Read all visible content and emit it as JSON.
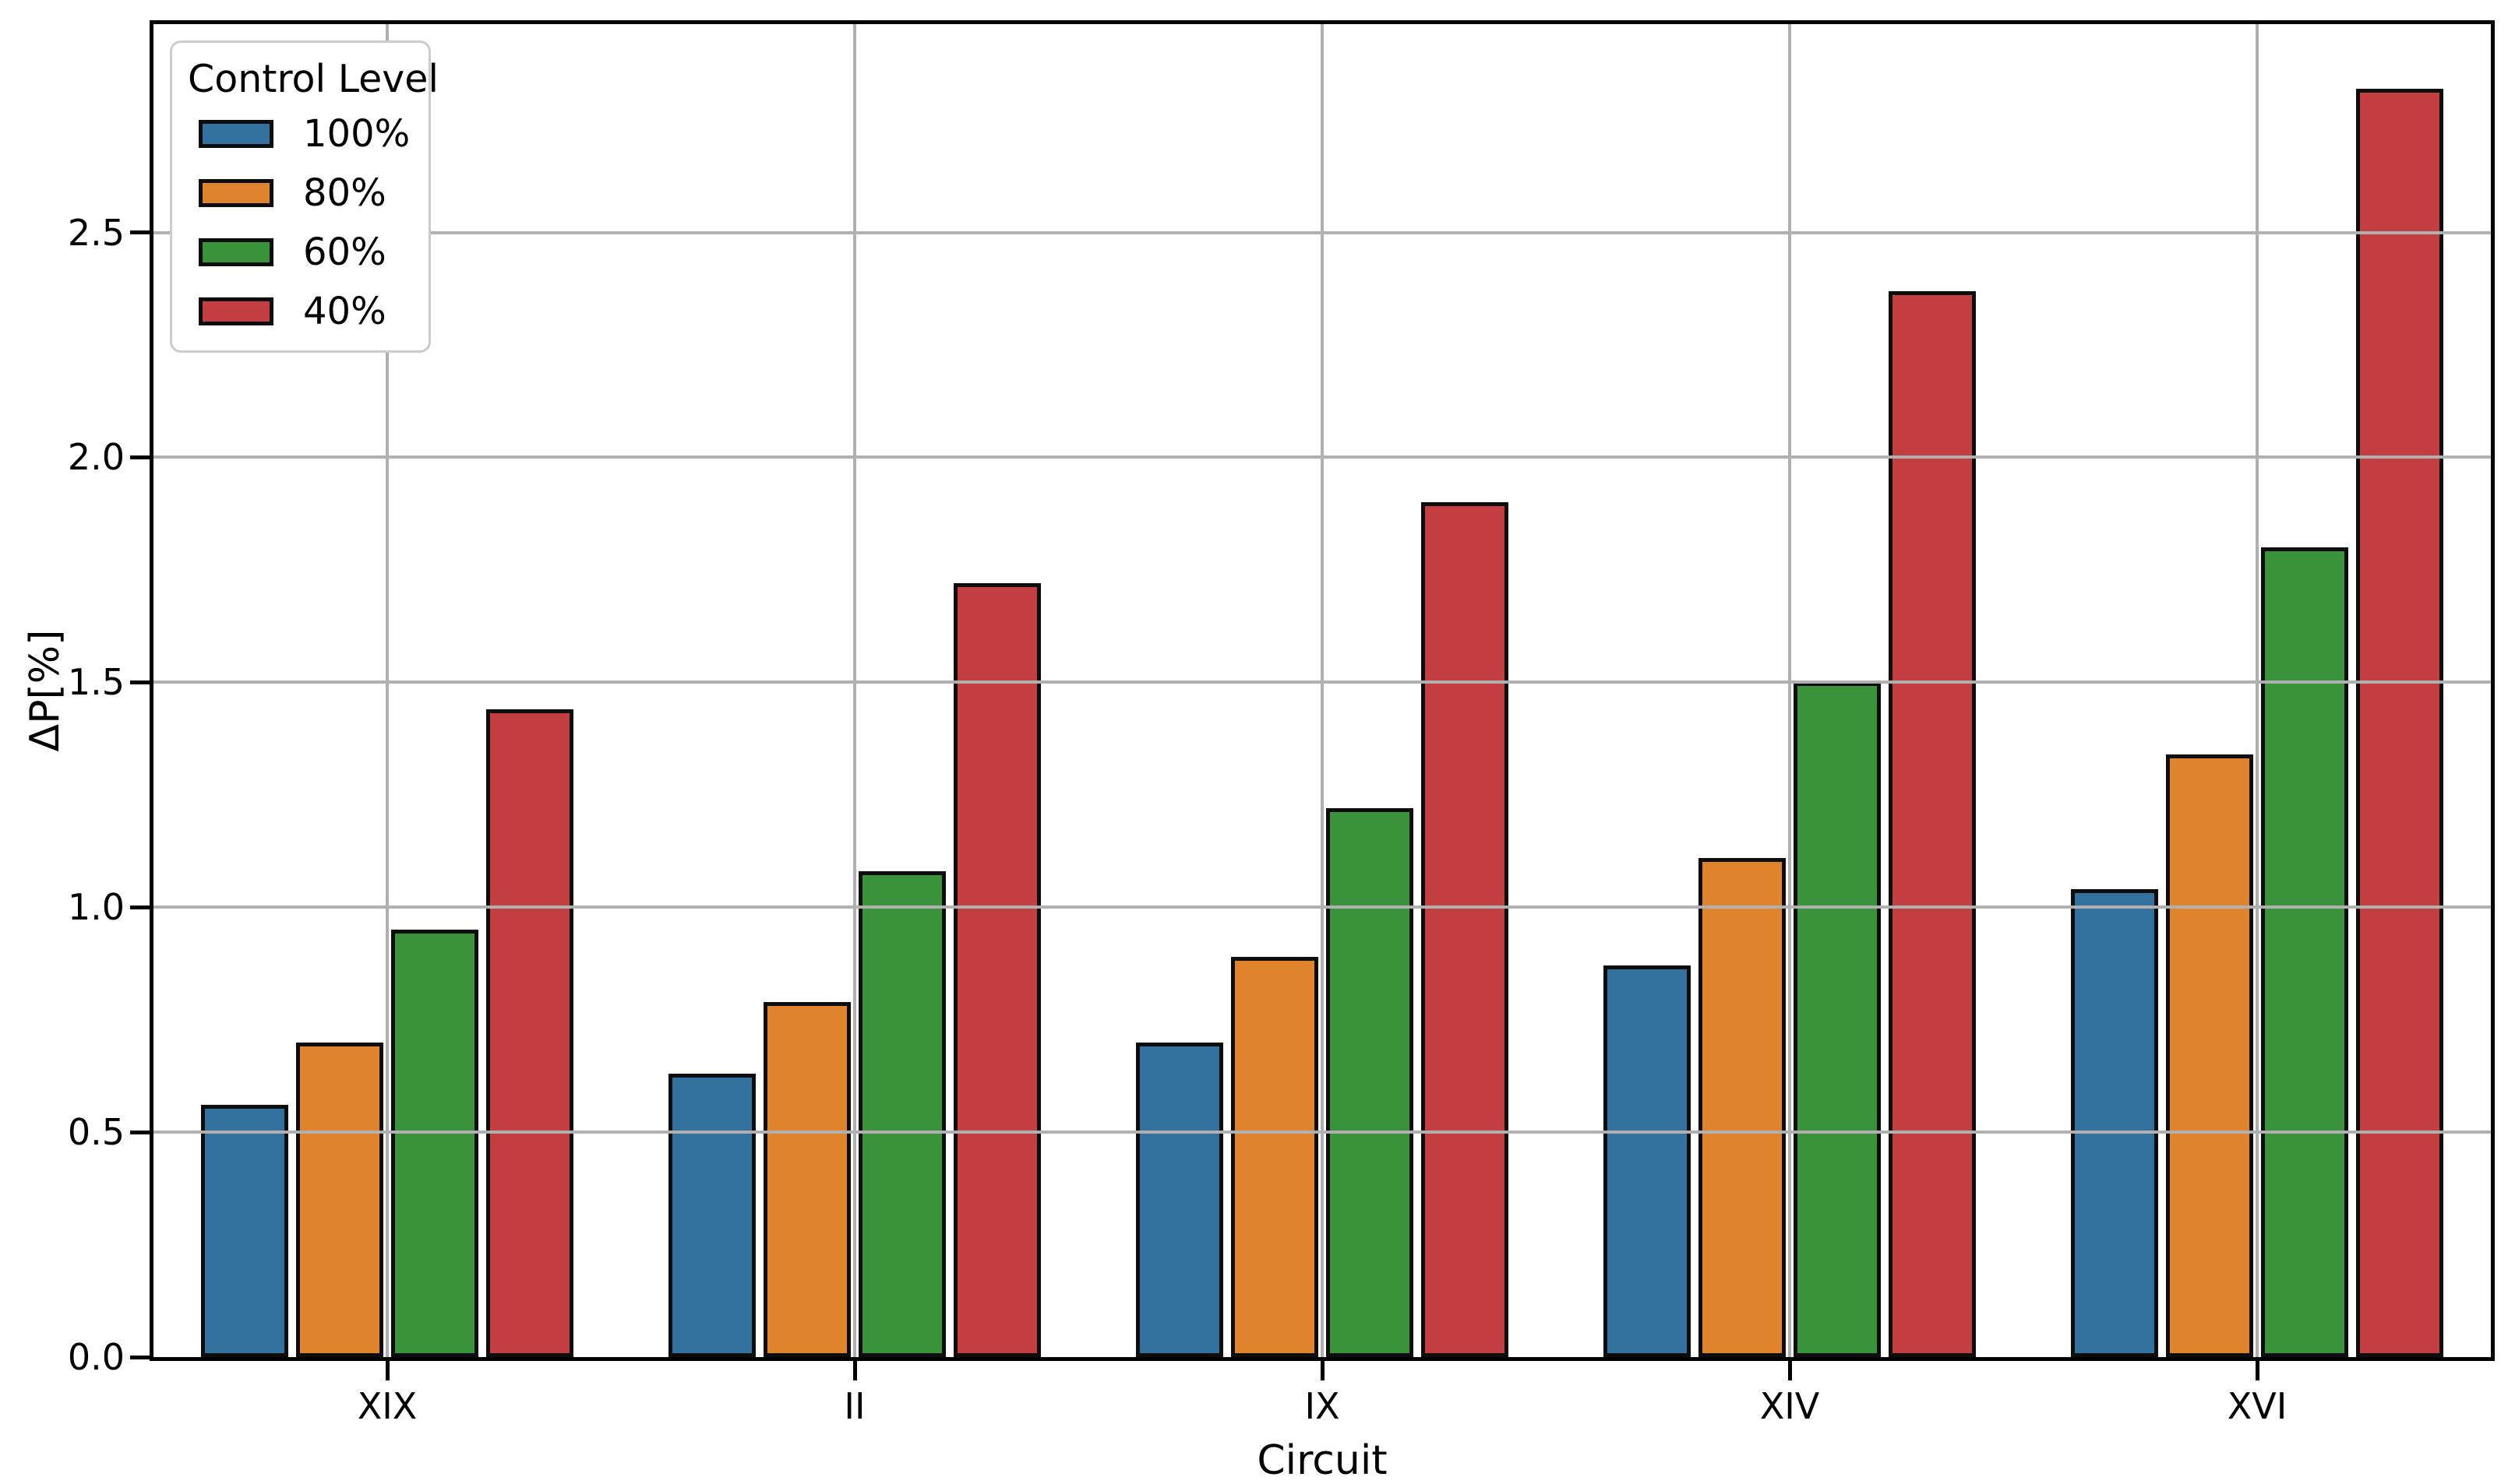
{
  "chart_data": {
    "type": "bar",
    "title": "",
    "xlabel": "Circuit",
    "ylabel": "ΔP[%]",
    "categories": [
      "XIX",
      "II",
      "IX",
      "XIV",
      "XVI"
    ],
    "series": [
      {
        "name": "100%",
        "color": "#33719E",
        "values": [
          0.56,
          0.63,
          0.7,
          0.87,
          1.04
        ]
      },
      {
        "name": "80%",
        "color": "#DF832D",
        "values": [
          0.7,
          0.79,
          0.89,
          1.11,
          1.34
        ]
      },
      {
        "name": "60%",
        "color": "#3A923A",
        "values": [
          0.95,
          1.08,
          1.22,
          1.5,
          1.8
        ]
      },
      {
        "name": "40%",
        "color": "#C23E40",
        "values": [
          1.44,
          1.72,
          1.9,
          2.37,
          2.82
        ]
      }
    ],
    "legend": {
      "title": "Control Level",
      "position": "upper-left"
    },
    "ylim": [
      0,
      2.963
    ],
    "yticks": [
      "0.0",
      "0.5",
      "1.0",
      "1.5",
      "2.0",
      "2.5"
    ],
    "grid": true,
    "grid_color": "#b0b0b0",
    "bar_edge_color": "#0d0d0d"
  }
}
